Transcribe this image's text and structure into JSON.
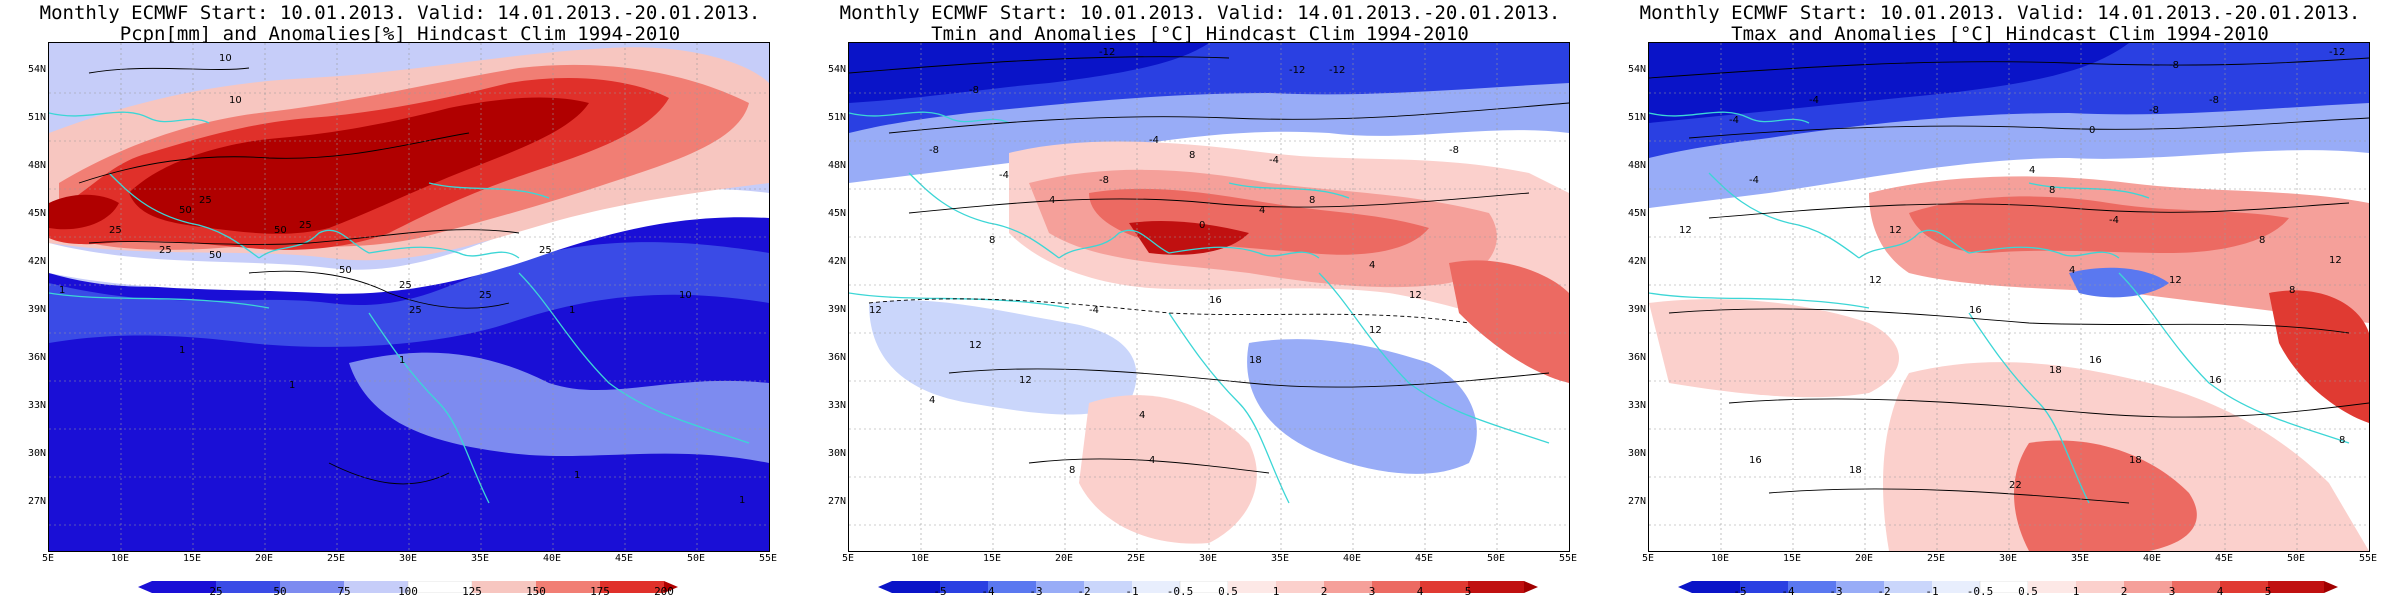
{
  "panels": [
    {
      "title_line1": "Monthly ECMWF Start: 10.01.2013. Valid: 14.01.2013.-20.01.2013.",
      "title_line2": "Pcpn[mm] and Anomalies[%] Hindcast Clim 1994-2010",
      "colorbar_ticks": [
        "25",
        "50",
        "75",
        "100",
        "125",
        "150",
        "175",
        "200"
      ],
      "contour_labels": [
        "10",
        "10",
        "25",
        "25",
        "25",
        "50",
        "50",
        "25",
        "25",
        "25",
        "25",
        "50",
        "50",
        "25",
        "10",
        "1",
        "1",
        "1",
        "1",
        "1",
        "1",
        "1"
      ]
    },
    {
      "title_line1": "Monthly ECMWF Start: 10.01.2013. Valid: 14.01.2013.-20.01.2013.",
      "title_line2": "Tmin and Anomalies [°C] Hindcast Clim 1994-2010",
      "colorbar_ticks": [
        "-5",
        "-4",
        "-3",
        "-2",
        "-1",
        "-0.5",
        "0.5",
        "1",
        "2",
        "3",
        "4",
        "5"
      ],
      "contour_labels": [
        "-12",
        "-8",
        "-12",
        "-8",
        "-8",
        "-4",
        "-4",
        "12",
        "8",
        "4",
        "-4",
        "0",
        "4",
        "12",
        "8",
        "-4",
        "-8",
        "-12",
        "8",
        "4",
        "12",
        "12",
        "16",
        "4",
        "4",
        "8",
        "4",
        "12",
        "18"
      ]
    },
    {
      "title_line1": "Monthly ECMWF Start: 10.01.2013. Valid: 14.01.2013.-20.01.2013.",
      "title_line2": "Tmax and Anomalies [°C] Hindcast Clim 1994-2010",
      "colorbar_ticks": [
        "-5",
        "-4",
        "-3",
        "-2",
        "-1",
        "-0.5",
        "0.5",
        "1",
        "2",
        "3",
        "4",
        "5"
      ],
      "contour_labels": [
        "-12",
        "-8",
        "-8",
        "-4",
        "-4",
        "0",
        "4",
        "8",
        "-4",
        "-8",
        "12",
        "8",
        "12",
        "12",
        "16",
        "12",
        "-4",
        "4",
        "8",
        "12",
        "16",
        "18",
        "16",
        "18",
        "22",
        "18",
        "16",
        "8"
      ]
    }
  ],
  "lat_labels": [
    "54N",
    "51N",
    "48N",
    "45N",
    "42N",
    "39N",
    "36N",
    "33N",
    "30N",
    "27N"
  ],
  "lon_labels": [
    "5E",
    "10E",
    "15E",
    "20E",
    "25E",
    "30E",
    "35E",
    "40E",
    "45E",
    "50E",
    "55E"
  ],
  "colors": {
    "precip_scale": [
      "#1a0fd6",
      "#3a4be6",
      "#7d8bf0",
      "#c6cdf9",
      "#ffffff",
      "#f7c6c0",
      "#f17e74",
      "#e0302a",
      "#b00000"
    ],
    "temp_scale": [
      "#0a14c8",
      "#2a40e2",
      "#5a78f0",
      "#98acf7",
      "#cad6fb",
      "#ffffff",
      "#ffffff",
      "#fbd0cc",
      "#f5a09a",
      "#ec6a62",
      "#e03a32",
      "#c01010",
      "#a00000"
    ],
    "coastline": "#3cd6d6",
    "border": "#000000"
  }
}
